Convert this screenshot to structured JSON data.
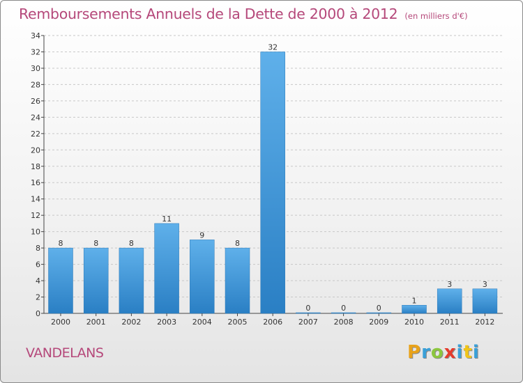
{
  "title": "Remboursements Annuels de la Dette de 2000 à 2012",
  "unit_note": "(en milliers d'€)",
  "commune": "VANDELANS",
  "logo_text": "Proxiti",
  "colors": {
    "bar": "#3a8fd6",
    "bar_light": "#5aaae6",
    "title": "#b5487a"
  },
  "chart_data": {
    "type": "bar",
    "title": "Remboursements Annuels de la Dette de 2000 à 2012",
    "categories": [
      "2000",
      "2001",
      "2002",
      "2003",
      "2004",
      "2005",
      "2006",
      "2007",
      "2008",
      "2009",
      "2010",
      "2011",
      "2012"
    ],
    "values": [
      8,
      8,
      8,
      11,
      9,
      8,
      32,
      0,
      0,
      0,
      1,
      3,
      3
    ],
    "ylim": [
      0,
      34
    ],
    "yticks": [
      0,
      2,
      4,
      6,
      8,
      10,
      12,
      14,
      16,
      18,
      20,
      22,
      24,
      26,
      28,
      30,
      32,
      34
    ],
    "xlabel": "",
    "ylabel": "",
    "grid": true
  }
}
